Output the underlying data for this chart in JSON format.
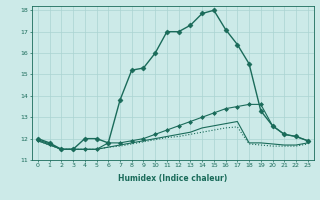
{
  "xlabel": "Humidex (Indice chaleur)",
  "ylabel": "",
  "background_color": "#cceae8",
  "grid_color": "#aad4d2",
  "line_color": "#1a6b5a",
  "xlim": [
    -0.5,
    23.5
  ],
  "ylim": [
    11,
    18.2
  ],
  "xticks": [
    0,
    1,
    2,
    3,
    4,
    5,
    6,
    7,
    8,
    9,
    10,
    11,
    12,
    13,
    14,
    15,
    16,
    17,
    18,
    19,
    20,
    21,
    22,
    23
  ],
  "yticks": [
    11,
    12,
    13,
    14,
    15,
    16,
    17,
    18
  ],
  "series": [
    {
      "y": [
        12.0,
        11.8,
        11.5,
        11.5,
        12.0,
        12.0,
        11.8,
        13.8,
        15.2,
        15.3,
        16.0,
        17.0,
        17.0,
        17.3,
        17.85,
        18.0,
        17.1,
        16.4,
        15.5,
        13.3,
        12.6,
        12.2,
        12.1,
        11.9
      ],
      "marker": "D",
      "markersize": 2.5,
      "linewidth": 1.0,
      "linestyle": "-"
    },
    {
      "y": [
        11.95,
        11.75,
        11.5,
        11.5,
        11.5,
        11.5,
        11.8,
        11.8,
        11.9,
        12.0,
        12.2,
        12.4,
        12.6,
        12.8,
        13.0,
        13.2,
        13.4,
        13.5,
        13.6,
        13.6,
        12.6,
        12.2,
        12.1,
        11.9
      ],
      "marker": "D",
      "markersize": 2.0,
      "linewidth": 0.8,
      "linestyle": "-"
    },
    {
      "y": [
        11.9,
        11.7,
        11.5,
        11.5,
        11.5,
        11.5,
        11.6,
        11.7,
        11.8,
        11.9,
        12.0,
        12.1,
        12.2,
        12.3,
        12.5,
        12.6,
        12.7,
        12.8,
        11.8,
        11.8,
        11.75,
        11.7,
        11.7,
        11.8
      ],
      "marker": null,
      "markersize": 0,
      "linewidth": 0.8,
      "linestyle": "-"
    },
    {
      "y": [
        11.9,
        11.7,
        11.5,
        11.5,
        11.5,
        11.5,
        11.6,
        11.65,
        11.75,
        11.85,
        11.95,
        12.05,
        12.1,
        12.2,
        12.3,
        12.4,
        12.5,
        12.55,
        11.75,
        11.7,
        11.65,
        11.65,
        11.65,
        11.75
      ],
      "marker": null,
      "markersize": 0,
      "linewidth": 0.8,
      "linestyle": ":"
    }
  ]
}
